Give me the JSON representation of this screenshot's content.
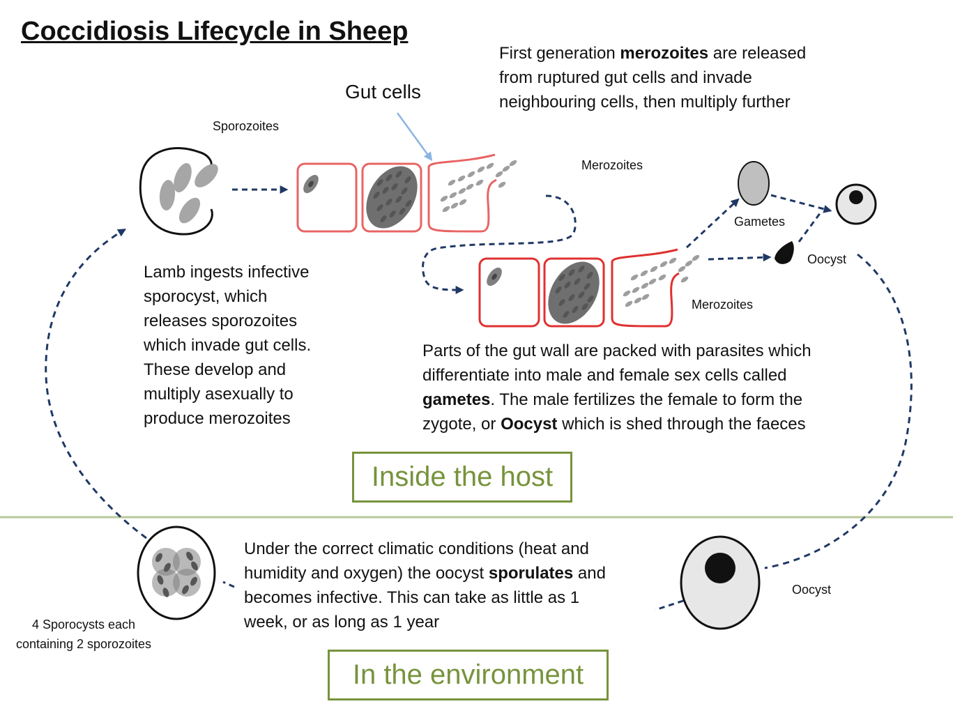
{
  "title": "Coccidiosis Lifecycle in Sheep",
  "labels": {
    "gut_cells": "Gut cells",
    "sporozoites": "Sporozoites",
    "merozoites_top": "Merozoites",
    "merozoites_bottom": "Merozoites",
    "gametes": "Gametes",
    "oocyst_host": "Oocyst",
    "oocyst_environment": "Oocyst",
    "sporocysts": "4 Sporocysts each containing 2 sporozoites"
  },
  "paragraphs": {
    "first_generation": {
      "line1_pre": "First generation ",
      "line1_bold": "merozoites",
      "line1_post": " are released",
      "line2": "from ruptured gut cells and invade",
      "line3": "neighbouring cells, then multiply further"
    },
    "lamb": {
      "line1": "Lamb ingests infective",
      "line2": "sporocyst, which",
      "line3": "releases sporozoites",
      "line4": "which invade gut cells.",
      "line5": "These develop and",
      "line6": "multiply asexually to",
      "line7": "produce merozoites"
    },
    "gut_wall": {
      "line1": "Parts of the gut wall are packed with parasites which",
      "line2": "differentiate into male and female sex cells called",
      "line3_bold": "gametes",
      "line3_post": ". The male fertilizes the female to form the",
      "line4_pre": "zygote, or ",
      "line4_bold": "Oocyst",
      "line4_post": " which is shed through the faeces"
    },
    "environment": {
      "line1": "Under the correct climatic conditions (heat and",
      "line2_pre": "humidity and oxygen) the oocyst ",
      "line2_bold": "sporulates",
      "line2_post": " and",
      "line3": "becomes infective. This can take as little as 1",
      "line4": "week, or as long as 1 year"
    }
  },
  "sections": {
    "inside_host": "Inside the host",
    "environment": "In the environment"
  },
  "colors": {
    "arrow": "#1f3864",
    "gut_cell_border": "#e03030",
    "gut_cell_border_light": "#e86464",
    "section_green": "#77933c",
    "divider": "#b7c99a",
    "parasite_grey": "#9e9e9e",
    "parasite_dark": "#707070"
  }
}
